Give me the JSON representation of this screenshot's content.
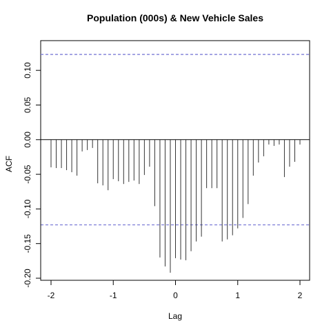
{
  "chart_data": {
    "type": "bar",
    "title": "Population (000s) & New Vehicle Sales",
    "xlabel": "Lag",
    "ylabel": "ACF",
    "xlim": [
      -2.0,
      2.0
    ],
    "ylim": [
      -0.2,
      0.13
    ],
    "x_ticks": [
      -2,
      -1,
      0,
      1,
      2
    ],
    "x_tick_labels": [
      "-2",
      "-1",
      "0",
      "1",
      "2"
    ],
    "y_ticks": [
      -0.2,
      -0.15,
      -0.1,
      -0.05,
      0.0,
      0.05,
      0.1
    ],
    "y_tick_labels": [
      "-0.20",
      "-0.15",
      "-0.10",
      "-0.05",
      "0.00",
      "0.05",
      "0.10"
    ],
    "confidence_bound": 0.123,
    "confidence_color": "#7b7bd6",
    "bar_color": "#333333",
    "grid": false,
    "lags": [
      -2.0,
      -1.9167,
      -1.8333,
      -1.75,
      -1.6667,
      -1.5833,
      -1.5,
      -1.4167,
      -1.3333,
      -1.25,
      -1.1667,
      -1.0833,
      -1.0,
      -0.9167,
      -0.8333,
      -0.75,
      -0.6667,
      -0.5833,
      -0.5,
      -0.4167,
      -0.3333,
      -0.25,
      -0.1667,
      -0.0833,
      0.0,
      0.0833,
      0.1667,
      0.25,
      0.3333,
      0.4167,
      0.5,
      0.5833,
      0.6667,
      0.75,
      0.8333,
      0.9167,
      1.0,
      1.0833,
      1.1667,
      1.25,
      1.3333,
      1.4167,
      1.5,
      1.5833,
      1.6667,
      1.75,
      1.8333,
      1.9167,
      2.0
    ],
    "values": [
      -0.04,
      -0.041,
      -0.041,
      -0.044,
      -0.047,
      -0.052,
      -0.017,
      -0.015,
      -0.012,
      -0.063,
      -0.066,
      -0.073,
      -0.057,
      -0.06,
      -0.064,
      -0.061,
      -0.059,
      -0.064,
      -0.051,
      -0.039,
      -0.096,
      -0.17,
      -0.183,
      -0.192,
      -0.171,
      -0.173,
      -0.174,
      -0.161,
      -0.147,
      -0.14,
      -0.07,
      -0.07,
      -0.07,
      -0.147,
      -0.144,
      -0.138,
      -0.128,
      -0.113,
      -0.093,
      -0.052,
      -0.033,
      -0.024,
      -0.007,
      -0.009,
      -0.007,
      -0.054,
      -0.039,
      -0.032,
      -0.007
    ]
  }
}
